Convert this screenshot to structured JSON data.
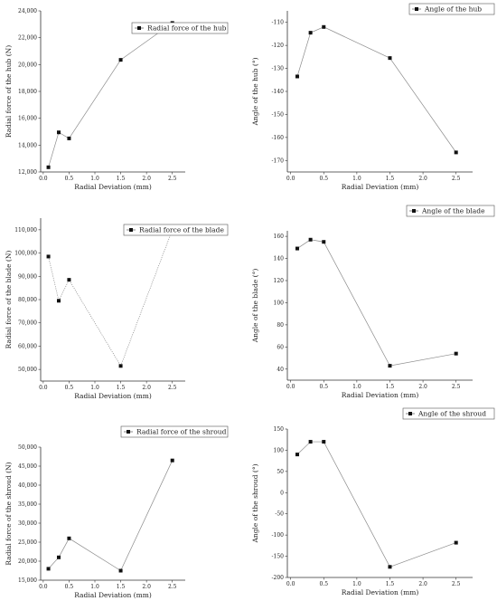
{
  "chart_data": [
    {
      "type": "line",
      "title": "",
      "xlabel": "Radial Deviation (mm)",
      "ylabel": "Radial force of the hub (N)",
      "xlim": [
        -0.05,
        2.75
      ],
      "ylim": [
        12000,
        24000
      ],
      "xticks": [
        0.0,
        0.5,
        1.0,
        1.5,
        2.0,
        2.5
      ],
      "xtick_labels": [
        "0.0",
        "0.5",
        "1.0",
        "1.5",
        "2.0",
        "2.5"
      ],
      "yticks": [
        12000,
        14000,
        16000,
        18000,
        20000,
        22000,
        24000
      ],
      "ytick_labels": [
        "12,000",
        "14,000",
        "16,000",
        "18,000",
        "20,000",
        "22,000",
        "24,000"
      ],
      "legend_position": "top-right",
      "series": [
        {
          "name": "Radial force of the hub",
          "x": [
            0.1,
            0.3,
            0.5,
            1.5,
            2.5
          ],
          "y": [
            12350,
            14950,
            14500,
            20350,
            23100
          ]
        }
      ]
    },
    {
      "type": "line",
      "title": "",
      "xlabel": "Radial Deviation (mm)",
      "ylabel": "Angle of the hub (°)",
      "xlim": [
        -0.05,
        2.75
      ],
      "ylim": [
        -175,
        -105
      ],
      "xticks": [
        0.0,
        0.5,
        1.0,
        1.5,
        2.0,
        2.5
      ],
      "xtick_labels": [
        "0.0",
        "0.5",
        "1.0",
        "1.5",
        "2.0",
        "2.5"
      ],
      "yticks": [
        -170,
        -160,
        -150,
        -140,
        -130,
        -120,
        -110
      ],
      "ytick_labels": [
        "-170",
        "-160",
        "-150",
        "-140",
        "-130",
        "-120",
        "-110"
      ],
      "legend_position": "top-right",
      "series": [
        {
          "name": "Angle of the hub",
          "x": [
            0.1,
            0.3,
            0.5,
            1.5,
            2.5
          ],
          "y": [
            -133.5,
            -114.5,
            -112,
            -125.5,
            -166.5
          ]
        }
      ]
    },
    {
      "type": "line",
      "title": "",
      "xlabel": "Radial Deviation (mm)",
      "ylabel": "Radial force of the blade (N)",
      "xlim": [
        -0.05,
        2.75
      ],
      "ylim": [
        45000,
        115000
      ],
      "xticks": [
        0.0,
        0.5,
        1.0,
        1.5,
        2.0,
        2.5
      ],
      "xtick_labels": [
        "0.0",
        "0.5",
        "1.0",
        "1.5",
        "2.0",
        "2.5"
      ],
      "yticks": [
        50000,
        60000,
        70000,
        80000,
        90000,
        100000,
        110000
      ],
      "ytick_labels": [
        "50,000",
        "60,000",
        "70,000",
        "80,000",
        "90,000",
        "100,000",
        "110,000"
      ],
      "legend_position": "top-right",
      "series": [
        {
          "name": "Radial force of the blade",
          "x": [
            0.1,
            0.3,
            0.5,
            1.5,
            2.5
          ],
          "y": [
            98500,
            79500,
            88500,
            51500,
            110000
          ]
        }
      ]
    },
    {
      "type": "line",
      "title": "",
      "xlabel": "Radial Deviation (mm)",
      "ylabel": "Angle of the blade (°)",
      "xlim": [
        -0.05,
        2.75
      ],
      "ylim": [
        30,
        165
      ],
      "xticks": [
        0.0,
        0.5,
        1.0,
        1.5,
        2.0,
        2.5
      ],
      "xtick_labels": [
        "0.0",
        "0.5",
        "1.0",
        "1.5",
        "2.0",
        "2.5"
      ],
      "yticks": [
        40,
        60,
        80,
        100,
        120,
        140,
        160
      ],
      "ytick_labels": [
        "40",
        "60",
        "80",
        "100",
        "120",
        "140",
        "160"
      ],
      "legend_position": "top-right",
      "series": [
        {
          "name": "Angle of the blade",
          "x": [
            0.1,
            0.3,
            0.5,
            1.5,
            2.5
          ],
          "y": [
            149,
            157,
            155,
            43,
            54
          ]
        }
      ]
    },
    {
      "type": "line",
      "title": "",
      "xlabel": "Radial Deviation (mm)",
      "ylabel": "Radial force of the shroud (N)",
      "xlim": [
        -0.05,
        2.75
      ],
      "ylim": [
        15000,
        50000
      ],
      "xticks": [
        0.0,
        0.5,
        1.0,
        1.5,
        2.0,
        2.5
      ],
      "xtick_labels": [
        "0.0",
        "0.5",
        "1.0",
        "1.5",
        "2.0",
        "2.5"
      ],
      "yticks": [
        15000,
        20000,
        25000,
        30000,
        35000,
        40000,
        45000,
        50000
      ],
      "ytick_labels": [
        "15,000",
        "20,000",
        "25,000",
        "30,000",
        "35,000",
        "40,000",
        "45,000",
        "50,000"
      ],
      "legend_position": "top-right",
      "series": [
        {
          "name": "Radial force of the shroud",
          "x": [
            0.1,
            0.3,
            0.5,
            1.5,
            2.5
          ],
          "y": [
            18000,
            21000,
            26000,
            17500,
            46500
          ]
        }
      ]
    },
    {
      "type": "line",
      "title": "",
      "xlabel": "Radial Deviation (mm)",
      "ylabel": "Angle of the shroud (°)",
      "xlim": [
        -0.05,
        2.75
      ],
      "ylim": [
        -200,
        150
      ],
      "xticks": [
        0.0,
        0.5,
        1.0,
        1.5,
        2.0,
        2.5
      ],
      "xtick_labels": [
        "0.0",
        "0.5",
        "1.0",
        "1.5",
        "2.0",
        "2.5"
      ],
      "yticks": [
        -200,
        -150,
        -100,
        -50,
        0,
        50,
        100,
        150
      ],
      "ytick_labels": [
        "-200",
        "-150",
        "-100",
        "-50",
        "0",
        "50",
        "100",
        "150"
      ],
      "legend_position": "top-right",
      "series": [
        {
          "name": "Angle of the shroud",
          "x": [
            0.1,
            0.3,
            0.5,
            1.5,
            2.5
          ],
          "y": [
            90,
            120,
            120,
            -175,
            -118
          ]
        }
      ]
    }
  ]
}
